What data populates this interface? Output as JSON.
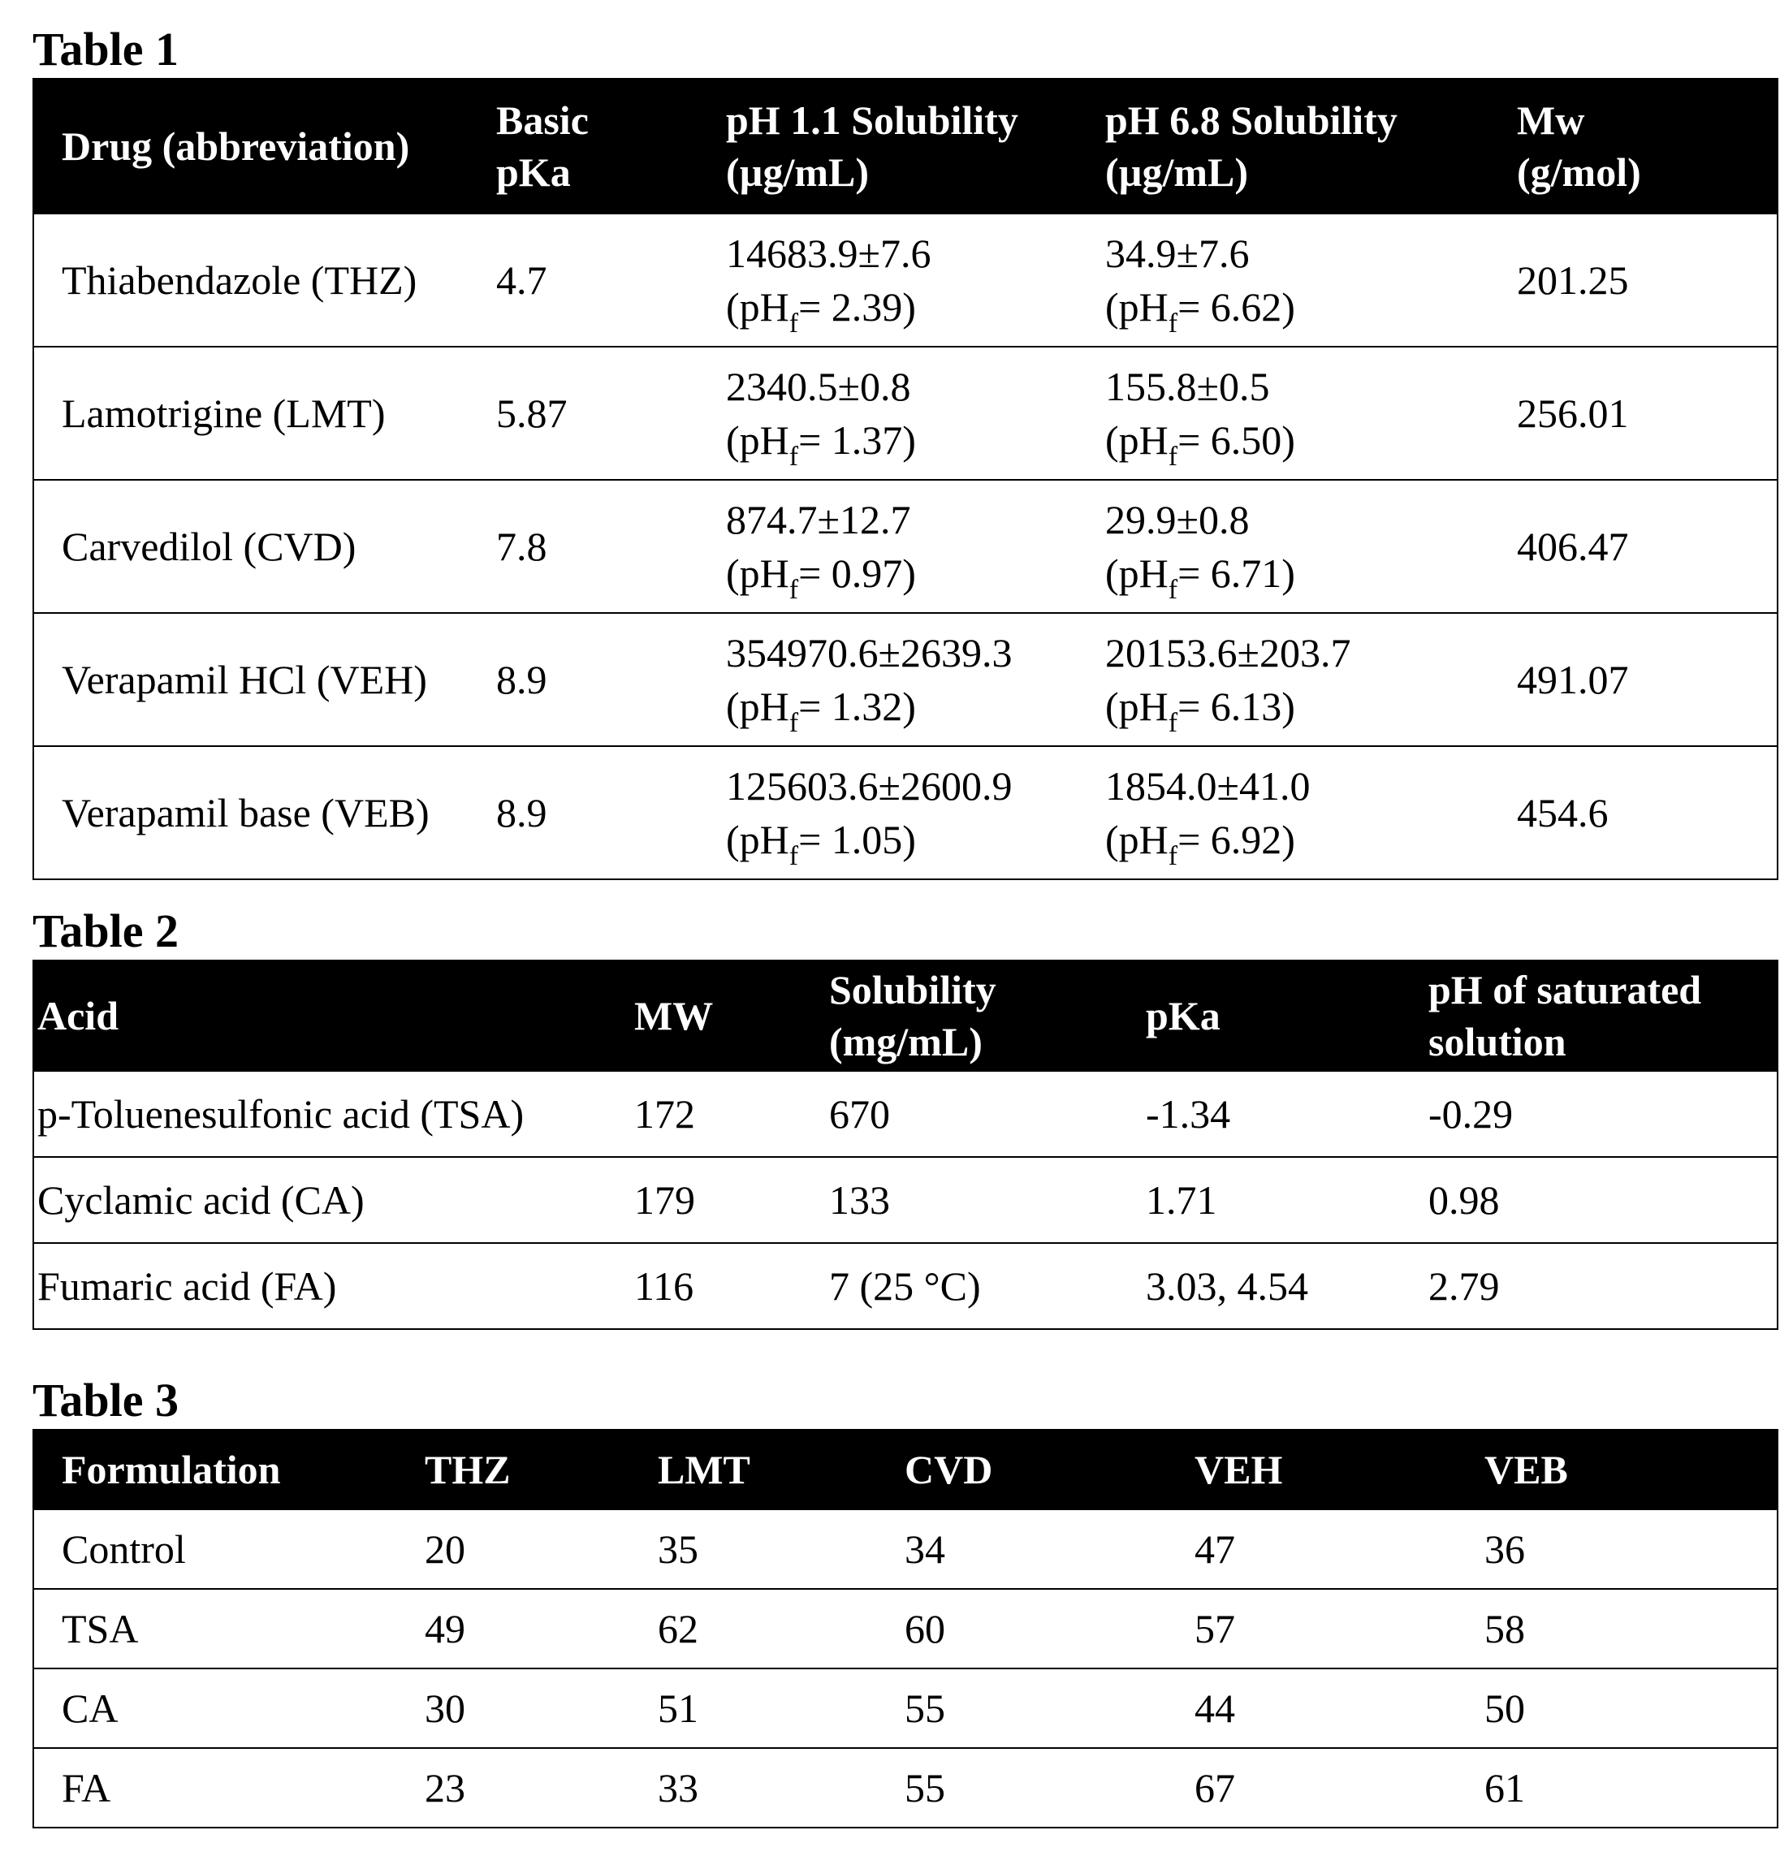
{
  "table1": {
    "title": "Table 1",
    "headers": [
      [
        "Drug (abbreviation)"
      ],
      [
        "Basic",
        "pKa"
      ],
      [
        "pH 1.1 Solubility",
        "(µg/mL)"
      ],
      [
        "pH 6.8 Solubility",
        "(µg/mL)"
      ],
      [
        "Mw",
        "(g/mol)"
      ]
    ],
    "rows": [
      {
        "drug": "Thiabendazole (THZ)",
        "pka": "4.7",
        "sol11": "14683.9±7.6",
        "ph11": "2.39",
        "sol68": "34.9±7.6",
        "ph68": "6.62",
        "mw": "201.25"
      },
      {
        "drug": "Lamotrigine (LMT)",
        "pka": "5.87",
        "sol11": "2340.5±0.8",
        "ph11": "1.37",
        "sol68": "155.8±0.5",
        "ph68": "6.50",
        "mw": "256.01"
      },
      {
        "drug": "Carvedilol (CVD)",
        "pka": "7.8",
        "sol11": "874.7±12.7",
        "ph11": "0.97",
        "sol68": "29.9±0.8",
        "ph68": "6.71",
        "mw": "406.47"
      },
      {
        "drug": "Verapamil HCl (VEH)",
        "pka": "8.9",
        "sol11": "354970.6±2639.3",
        "ph11": "1.32",
        "sol68": "20153.6±203.7",
        "ph68": "6.13",
        "mw": "491.07"
      },
      {
        "drug": "Verapamil base (VEB)",
        "pka": "8.9",
        "sol11": "125603.6±2600.9",
        "ph11": "1.05",
        "sol68": "1854.0±41.0",
        "ph68": "6.92",
        "mw": "454.6"
      }
    ],
    "ph_prefix": "(pH",
    "ph_sub": "f",
    "ph_eq": "= ",
    "ph_suffix": ")"
  },
  "table2": {
    "title": "Table 2",
    "headers": [
      [
        "Acid"
      ],
      [
        "MW"
      ],
      [
        "Solubility",
        "(mg/mL)"
      ],
      [
        "pKa"
      ],
      [
        "pH of saturated",
        "solution"
      ]
    ],
    "rows": [
      [
        "p-Toluenesulfonic acid (TSA)",
        "172",
        "670",
        "-1.34",
        "-0.29"
      ],
      [
        "Cyclamic acid (CA)",
        "179",
        "133",
        "1.71",
        "0.98"
      ],
      [
        "Fumaric acid (FA)",
        "116",
        "7 (25 °C)",
        "3.03, 4.54",
        "2.79"
      ]
    ]
  },
  "table3": {
    "title": "Table 3",
    "headers": [
      "Formulation",
      "THZ",
      "LMT",
      "CVD",
      "VEH",
      "VEB"
    ],
    "rows": [
      [
        "Control",
        "20",
        "35",
        "34",
        "47",
        "36"
      ],
      [
        "TSA",
        "49",
        "62",
        "60",
        "57",
        "58"
      ],
      [
        "CA",
        "30",
        "51",
        "55",
        "44",
        "50"
      ],
      [
        "FA",
        "23",
        "33",
        "55",
        "67",
        "61"
      ]
    ]
  }
}
